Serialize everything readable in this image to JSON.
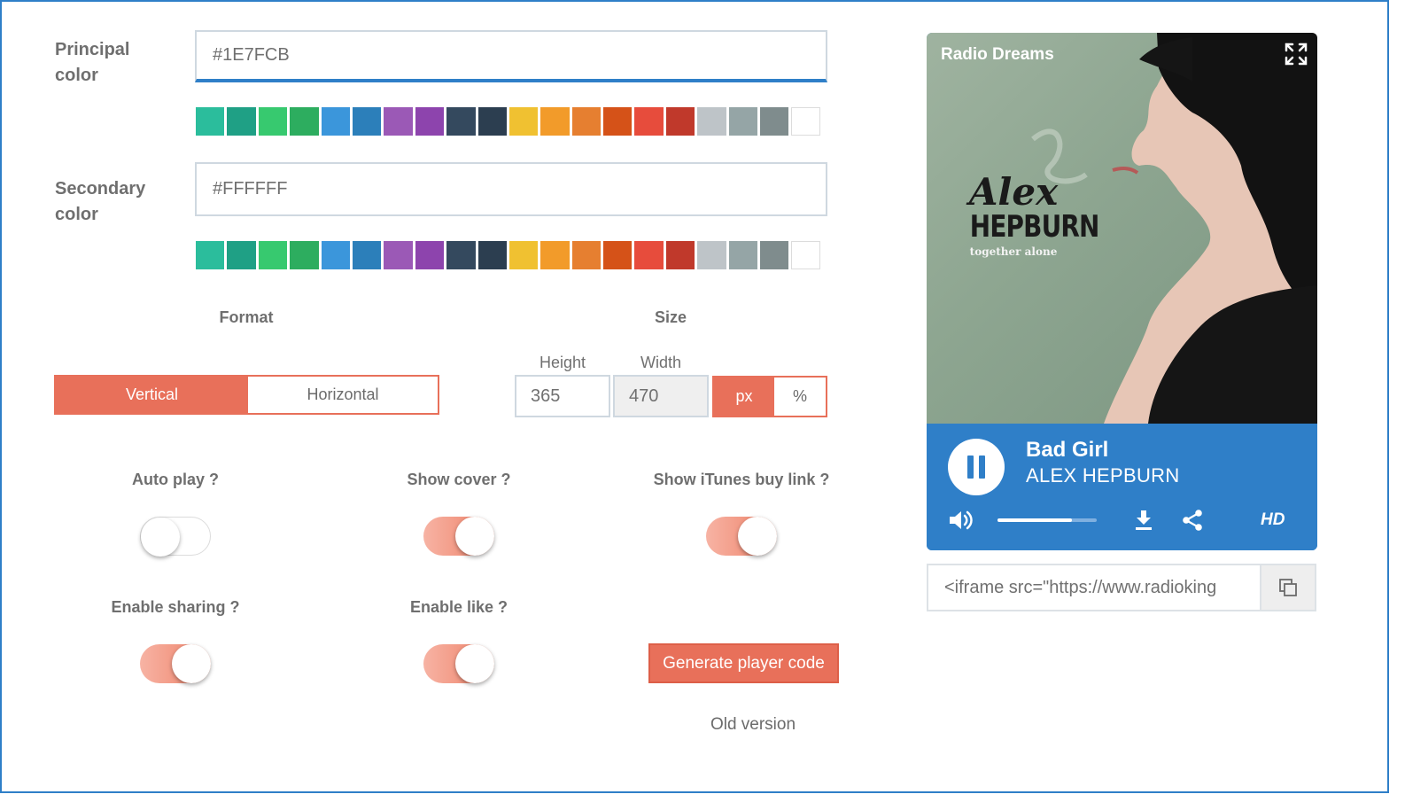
{
  "principal_color": {
    "label_line1": "Principal",
    "label_line2": "color",
    "value": "#1E7FCB"
  },
  "secondary_color": {
    "label_line1": "Secondary",
    "label_line2": "color",
    "value": "#FFFFFF"
  },
  "swatch_colors": [
    "#2bbd9c",
    "#1fa085",
    "#37c96f",
    "#2dad5f",
    "#3b96db",
    "#2c7fba",
    "#9b59b6",
    "#8d44ad",
    "#34495e",
    "#2c3e50",
    "#f0c131",
    "#f29b2a",
    "#e67f30",
    "#d55218",
    "#e74c3c",
    "#c0392b",
    "#bec4c8",
    "#95a5a6",
    "#7f8c8d",
    "#ffffff"
  ],
  "format": {
    "title": "Format",
    "options": [
      "Vertical",
      "Horizontal"
    ],
    "selected": "Vertical"
  },
  "size": {
    "title": "Size",
    "height_label": "Height",
    "width_label": "Width",
    "height_value": "365",
    "width_value": "470",
    "units": [
      "px",
      "%"
    ],
    "selected_unit": "px"
  },
  "options": {
    "auto_play": {
      "label": "Auto play ?",
      "on": false
    },
    "show_cover": {
      "label": "Show cover ?",
      "on": true
    },
    "show_itunes": {
      "label": "Show iTunes buy link ?",
      "on": true
    },
    "enable_sharing": {
      "label": "Enable sharing ?",
      "on": true
    },
    "enable_like": {
      "label": "Enable like ?",
      "on": true
    }
  },
  "generate_button": "Generate player code",
  "old_version_link": "Old version",
  "player": {
    "station": "Radio Dreams",
    "song_title": "Bad Girl",
    "artist": "ALEX HEPBURN",
    "progress": 0.75,
    "hd_label": "HD",
    "cover_art": {
      "script_text": "Alex",
      "block_text": "HEPBURN",
      "sub_text": "together alone"
    },
    "accent": "#2f7fc8"
  },
  "embed_code": "<iframe src=\"https://www.radioking",
  "theme": {
    "accent": "#e8705a",
    "frame_border": "#2f7fc8"
  }
}
